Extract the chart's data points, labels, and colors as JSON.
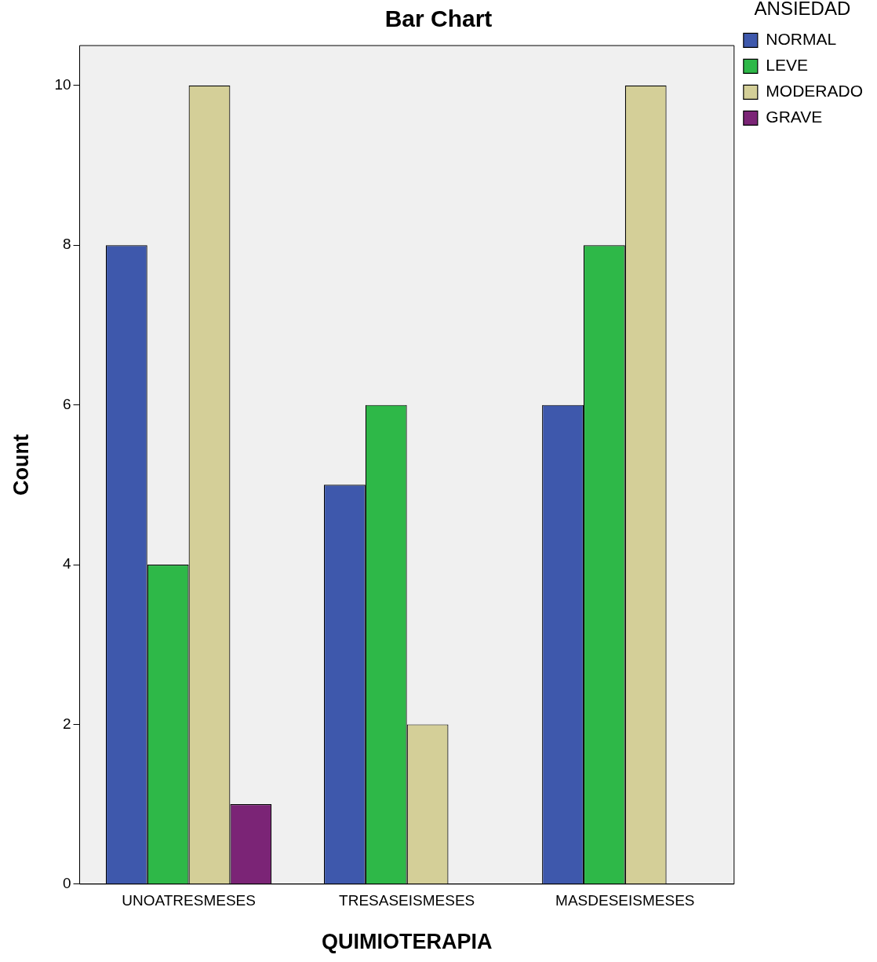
{
  "chart_data": {
    "type": "bar",
    "title": "Bar Chart",
    "xlabel": "QUIMIOTERAPIA",
    "ylabel": "Count",
    "legend_title": "ANSIEDAD",
    "categories": [
      "UNOATRESMESES",
      "TRESASEISMESES",
      "MASDESEISMESES"
    ],
    "series": [
      {
        "name": "NORMAL",
        "color": "#3e58ac",
        "values": [
          8,
          5,
          6
        ]
      },
      {
        "name": "LEVE",
        "color": "#2eb848",
        "values": [
          4,
          6,
          8
        ]
      },
      {
        "name": "MODERADO",
        "color": "#d4cf98",
        "values": [
          10,
          2,
          10
        ]
      },
      {
        "name": "GRAVE",
        "color": "#7b2476",
        "values": [
          1,
          null,
          null
        ]
      }
    ],
    "ylim": [
      0,
      10.5
    ],
    "yticks": [
      0,
      2,
      4,
      6,
      8,
      10
    ],
    "grid": false,
    "legend": "top right"
  }
}
